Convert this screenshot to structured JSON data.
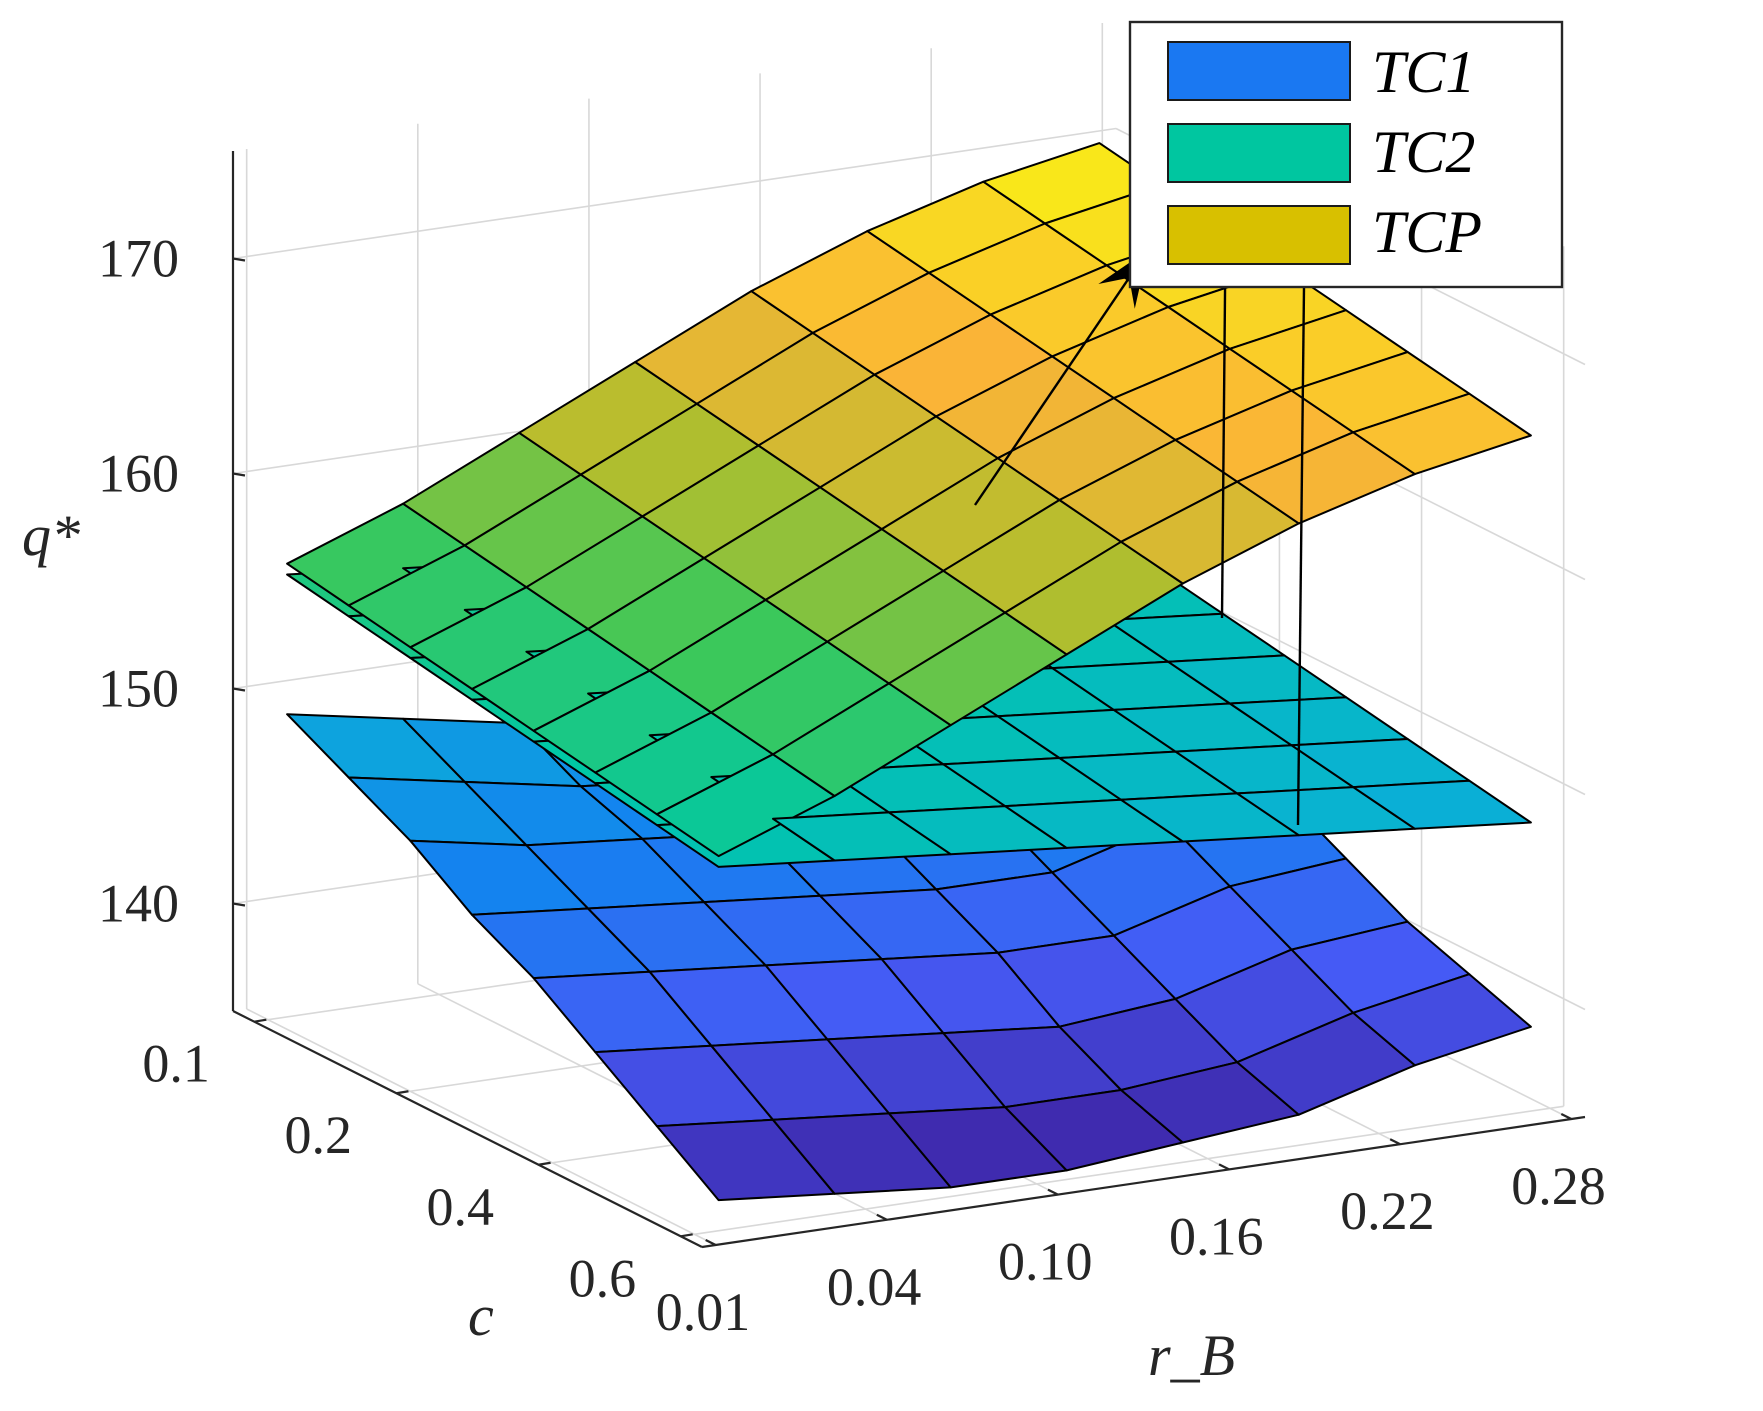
{
  "chart_data": {
    "type": "surface3d",
    "title": "",
    "xlabel": "r_B",
    "ylabel": "c",
    "zlabel": "q*",
    "x_ticks": [
      "0.01",
      "0.04",
      "0.10",
      "0.16",
      "0.22",
      "0.28"
    ],
    "y_ticks": [
      "0.1",
      "0.2",
      "0.4",
      "0.6"
    ],
    "z_ticks": [
      "140",
      "150",
      "160",
      "170"
    ],
    "zlim": [
      135,
      175
    ],
    "grid": true,
    "legend_position": "top-right",
    "colors": {
      "TC1": "#1a78f2",
      "TC2": "#00c6a0",
      "TCP": "#d8c000"
    },
    "series": [
      {
        "name": "TC1",
        "rows": 8,
        "cols": 8,
        "note_values": "rows = c from 0.6 to 0.1, cols = r_B from 0.01 to 0.28",
        "z": [
          [
            149,
            148,
            147,
            146,
            145.5,
            145,
            146.5,
            147
          ],
          [
            147.5,
            146.5,
            145.5,
            145,
            144.5,
            144.5,
            146,
            146.5
          ],
          [
            146,
            145,
            144.5,
            144,
            143.5,
            143.5,
            145,
            145.5
          ],
          [
            144,
            143.5,
            143,
            142.5,
            142,
            142,
            143.5,
            144
          ],
          [
            142.5,
            142,
            141.5,
            141,
            140.5,
            140.5,
            142,
            142.5
          ],
          [
            140.5,
            140,
            139.5,
            139,
            138.5,
            139,
            140.5,
            141
          ],
          [
            138.5,
            138,
            137.5,
            137,
            137,
            137.5,
            139,
            140
          ],
          [
            136.5,
            136,
            135.5,
            135.5,
            136,
            136.5,
            138,
            139
          ]
        ]
      },
      {
        "name": "TC2",
        "rows": 8,
        "cols": 8,
        "z": [
          [
            155.5,
            155,
            154.5,
            154,
            153.5,
            153,
            152.5,
            152
          ],
          [
            155,
            154.5,
            154,
            153.5,
            153,
            152.5,
            152,
            151.5
          ],
          [
            154.5,
            154,
            153.5,
            153,
            152.5,
            152,
            151.5,
            151
          ],
          [
            154,
            153.5,
            153,
            152.5,
            152,
            151.5,
            151,
            150.5
          ],
          [
            153.5,
            153,
            152.5,
            152,
            151.5,
            151,
            150.5,
            150
          ],
          [
            153,
            152.5,
            152,
            151.5,
            151,
            150.5,
            150,
            149.5
          ],
          [
            152.5,
            152,
            151.5,
            151,
            150.5,
            150,
            149.5,
            149
          ],
          [
            152,
            151.5,
            151,
            150.5,
            150,
            149.5,
            149,
            148.5
          ]
        ]
      },
      {
        "name": "TCP",
        "rows": 8,
        "cols": 8,
        "z": [
          [
            156,
            158,
            160.5,
            163,
            165.5,
            167.5,
            169,
            170
          ],
          [
            155.5,
            157.5,
            160,
            162.5,
            165,
            167,
            168.5,
            169.5
          ],
          [
            155,
            157,
            159.5,
            162,
            164.5,
            166.5,
            168,
            169
          ],
          [
            154.5,
            156.5,
            159,
            161.5,
            164,
            166,
            167.5,
            168.5
          ],
          [
            154,
            156,
            158.5,
            161,
            163.5,
            165.5,
            167,
            168
          ],
          [
            153.5,
            155.5,
            158,
            160.5,
            163,
            165,
            166.5,
            167.5
          ],
          [
            153,
            155,
            157.5,
            160,
            162.5,
            164.5,
            166,
            167
          ],
          [
            152.5,
            154.5,
            157,
            159.5,
            162,
            164,
            165.5,
            166.5
          ]
        ]
      }
    ]
  }
}
